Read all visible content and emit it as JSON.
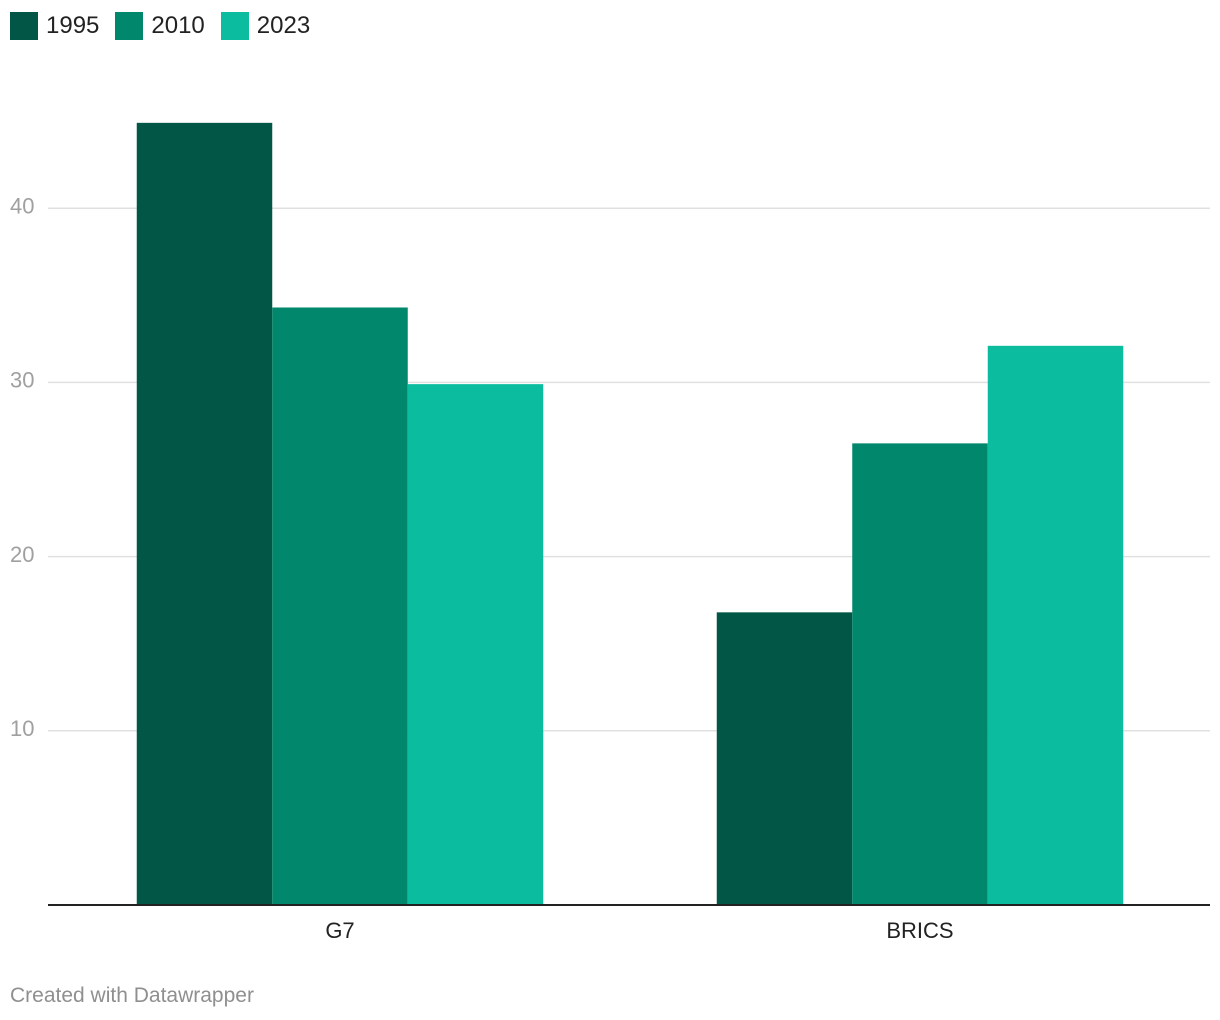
{
  "chart_data": {
    "type": "bar",
    "categories": [
      "G7",
      "BRICS"
    ],
    "series": [
      {
        "name": "1995",
        "color": "#025645",
        "values": [
          44.9,
          16.8
        ]
      },
      {
        "name": "2010",
        "color": "#00876c",
        "values": [
          34.3,
          26.5
        ]
      },
      {
        "name": "2023",
        "color": "#0bbc9f",
        "values": [
          29.9,
          32.1
        ]
      }
    ],
    "y_ticks": [
      10,
      20,
      30,
      40
    ],
    "y_tick_labels": [
      "10",
      "20",
      "30",
      "40"
    ],
    "ylim": [
      0,
      48
    ],
    "grid": true,
    "legend": "top-left",
    "title": "",
    "xlabel": "",
    "ylabel": ""
  },
  "footer": {
    "credit": "Created with Datawrapper"
  }
}
